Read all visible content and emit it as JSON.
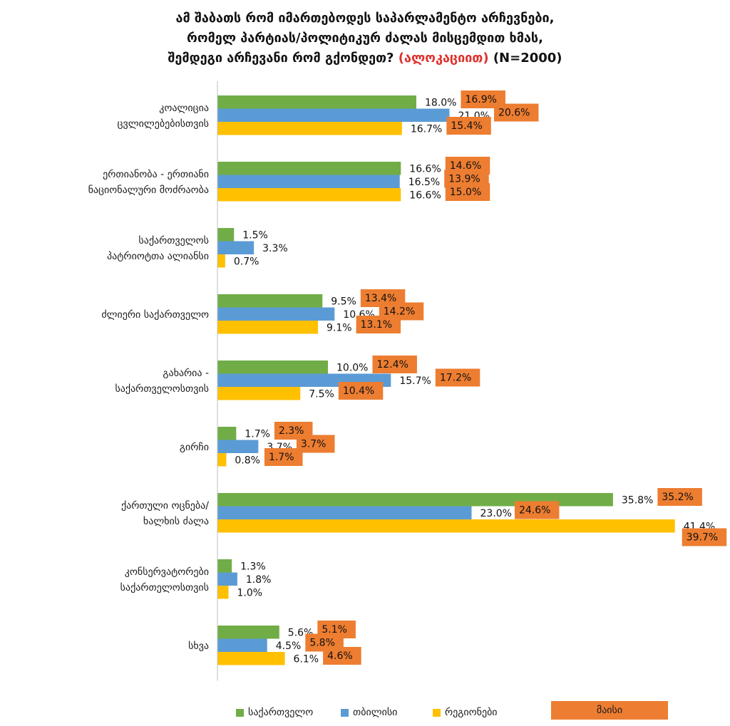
{
  "title": {
    "line1": "ამ შაბათს რომ იმართებოდეს საპარლამენტო არჩევნები,",
    "line2": "რომელ პარტიას/პოლიტიკურ ძალას მისცემდით ხმას,",
    "line3_main": "შემდეგი არჩევანი რომ გქონდეთ?",
    "line3_accent": "(ალოკაციით)",
    "line3_n": "(N=2000)"
  },
  "colors": {
    "georgia": "#70ad47",
    "tbilisi": "#5b9bd5",
    "regions": "#ffc000",
    "may": "#ed7d31"
  },
  "chart_data": {
    "type": "bar",
    "orientation": "horizontal",
    "categories": [
      [
        "კოალიცია",
        "ცვლილებებისთვის"
      ],
      [
        "ერთიანობა - ერთიანი",
        "ნაციონალური მოძრაობა"
      ],
      [
        "საქართველოს",
        "პატრიოტთა ალიანსი"
      ],
      [
        "ძლიერი საქართველო"
      ],
      [
        "გახარია -",
        "საქართველოსთვის"
      ],
      [
        "გირჩი"
      ],
      [
        "ქართული ოცნება/",
        "ხალხის ძალა"
      ],
      [
        "კონსერვატორები",
        "საქართელოსთვის"
      ],
      [
        "სხვა"
      ]
    ],
    "series": [
      {
        "name": "საქართველო",
        "color_key": "georgia",
        "values": [
          18.0,
          16.6,
          1.5,
          9.5,
          10.0,
          1.7,
          35.8,
          1.3,
          5.6
        ],
        "may": [
          "16.9%",
          "14.6%",
          "",
          "13.4%",
          "12.4%",
          "2.3%",
          "35.2%",
          "",
          "5.1%"
        ]
      },
      {
        "name": "თბილისი",
        "color_key": "tbilisi",
        "values": [
          21.0,
          16.5,
          3.3,
          10.6,
          15.7,
          3.7,
          23.0,
          1.8,
          4.5
        ],
        "may": [
          "20.6%",
          "13.9%",
          "",
          "14.2%",
          "17.2%",
          "3.7%",
          "24.6%",
          "",
          "5.8%"
        ]
      },
      {
        "name": "რეგიონები",
        "color_key": "regions",
        "values": [
          16.7,
          16.6,
          0.7,
          9.1,
          7.5,
          0.8,
          41.4,
          1.0,
          6.1
        ],
        "may": [
          "15.4%",
          "15.0%",
          "",
          "13.1%",
          "10.4%",
          "1.7%",
          "39.7%",
          "",
          "4.6%"
        ]
      }
    ],
    "comparison_series_name": "მაისი",
    "value_suffix": "%"
  },
  "legend": {
    "georgia": "საქართველო",
    "tbilisi": "თბილისი",
    "regions": "რეგიონები",
    "may": "მაისი"
  }
}
